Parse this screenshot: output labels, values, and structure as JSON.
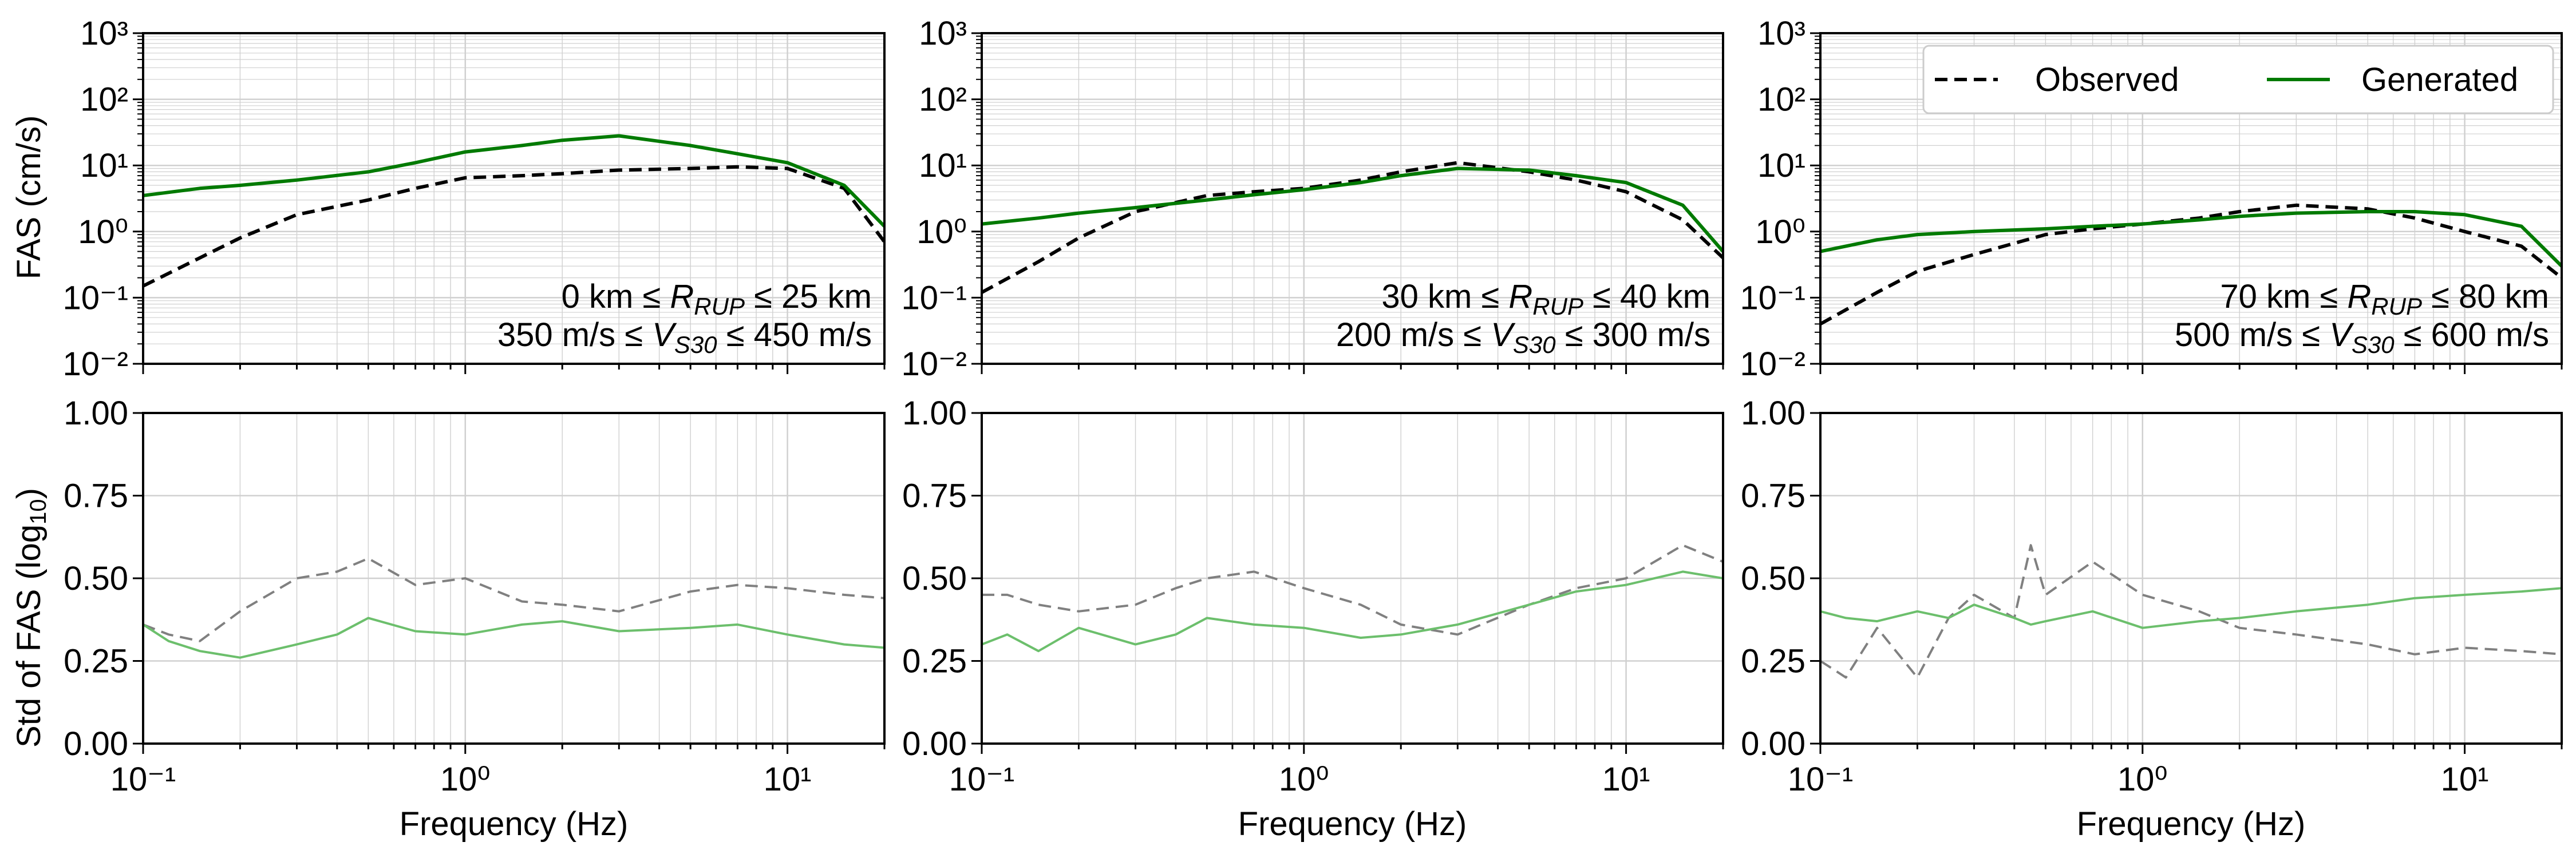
{
  "figure": {
    "legend": {
      "placement": "upper-right of top-right panel",
      "entries": [
        "Observed",
        "Generated"
      ]
    },
    "colors": {
      "observed_fas": "#000000",
      "generated_fas": "#007a00",
      "observed_std": "#808080",
      "generated_std": "#6cbf6c",
      "grid": "#d0d0d0",
      "axis": "#000000"
    },
    "ylabel_top": "FAS (cm/s)",
    "ylabel_bottom_prefix": "Std of FAS (log",
    "ylabel_bottom_sub": "10",
    "ylabel_bottom_suffix": ")",
    "xlabel": "Frequency (Hz)",
    "annotations": [
      {
        "line1_prefix": "0 km ≤ ",
        "line1_var": "R",
        "line1_sub": "RUP",
        "line1_suffix": " ≤ 25 km",
        "line2_prefix": "350 m/s ≤ ",
        "line2_var": "V",
        "line2_sub": "S30",
        "line2_suffix": " ≤ 450 m/s"
      },
      {
        "line1_prefix": "30 km ≤ ",
        "line1_var": "R",
        "line1_sub": "RUP",
        "line1_suffix": " ≤ 40 km",
        "line2_prefix": "200 m/s ≤ ",
        "line2_var": "V",
        "line2_sub": "S30",
        "line2_suffix": " ≤ 300 m/s"
      },
      {
        "line1_prefix": "70 km ≤ ",
        "line1_var": "R",
        "line1_sub": "RUP",
        "line1_suffix": " ≤ 80 km",
        "line2_prefix": "500 m/s ≤ ",
        "line2_var": "V",
        "line2_sub": "S30",
        "line2_suffix": " ≤ 600 m/s"
      }
    ]
  },
  "chart_data": [
    {
      "type": "line",
      "panel": "top-left",
      "xscale": "log",
      "yscale": "log",
      "xlim": [
        0.1,
        20
      ],
      "ylim": [
        0.01,
        1000
      ],
      "grid": true,
      "xticks": [
        "10⁻¹",
        "10⁰",
        "10¹"
      ],
      "yticks": [
        "10⁻²",
        "10⁻¹",
        "10⁰",
        "10¹",
        "10²",
        "10³"
      ],
      "ylabel": "FAS (cm/s)",
      "series": [
        {
          "name": "Observed",
          "style": "dashed",
          "x": [
            0.1,
            0.15,
            0.2,
            0.3,
            0.5,
            0.7,
            1.0,
            1.5,
            2.0,
            3.0,
            5.0,
            7.0,
            10,
            15,
            20
          ],
          "y": [
            0.15,
            0.4,
            0.8,
            1.8,
            3.0,
            4.5,
            6.5,
            7.0,
            7.5,
            8.5,
            9.0,
            9.5,
            9.0,
            4.5,
            0.7
          ]
        },
        {
          "name": "Generated",
          "style": "solid",
          "x": [
            0.1,
            0.15,
            0.2,
            0.3,
            0.5,
            0.7,
            1.0,
            1.5,
            2.0,
            3.0,
            5.0,
            7.0,
            10,
            15,
            20
          ],
          "y": [
            3.5,
            4.5,
            5.0,
            6.0,
            8.0,
            11.0,
            16.0,
            20.0,
            24.0,
            28.0,
            20.0,
            15.0,
            11.0,
            5.0,
            1.2
          ]
        }
      ]
    },
    {
      "type": "line",
      "panel": "top-middle",
      "xscale": "log",
      "yscale": "log",
      "xlim": [
        0.1,
        20
      ],
      "ylim": [
        0.01,
        1000
      ],
      "grid": true,
      "xticks": [
        "10⁻¹",
        "10⁰",
        "10¹"
      ],
      "yticks": [
        "10⁻²",
        "10⁻¹",
        "10⁰",
        "10¹",
        "10²",
        "10³"
      ],
      "series": [
        {
          "name": "Observed",
          "style": "dashed",
          "x": [
            0.1,
            0.15,
            0.2,
            0.3,
            0.5,
            0.7,
            1.0,
            1.5,
            2.0,
            3.0,
            5.0,
            7.0,
            10,
            15,
            20
          ],
          "y": [
            0.12,
            0.35,
            0.8,
            2.0,
            3.5,
            4.0,
            4.5,
            6.0,
            8.0,
            11.0,
            8.0,
            6.0,
            4.0,
            1.5,
            0.4
          ]
        },
        {
          "name": "Generated",
          "style": "solid",
          "x": [
            0.1,
            0.15,
            0.2,
            0.3,
            0.5,
            0.7,
            1.0,
            1.5,
            2.0,
            3.0,
            5.0,
            7.0,
            10,
            15,
            20
          ],
          "y": [
            1.3,
            1.6,
            1.9,
            2.3,
            3.0,
            3.6,
            4.3,
            5.5,
            7.0,
            9.0,
            8.5,
            7.0,
            5.5,
            2.5,
            0.5
          ]
        }
      ]
    },
    {
      "type": "line",
      "panel": "top-right",
      "xscale": "log",
      "yscale": "log",
      "xlim": [
        0.1,
        20
      ],
      "ylim": [
        0.01,
        1000
      ],
      "grid": true,
      "legend": "upper-right",
      "xticks": [
        "10⁻¹",
        "10⁰",
        "10¹"
      ],
      "yticks": [
        "10⁻²",
        "10⁻¹",
        "10⁰",
        "10¹",
        "10²",
        "10³"
      ],
      "series": [
        {
          "name": "Observed",
          "style": "dashed",
          "x": [
            0.1,
            0.15,
            0.2,
            0.3,
            0.5,
            0.7,
            1.0,
            1.5,
            2.0,
            3.0,
            5.0,
            7.0,
            10,
            15,
            20
          ],
          "y": [
            0.04,
            0.12,
            0.25,
            0.45,
            0.9,
            1.1,
            1.3,
            1.6,
            2.0,
            2.5,
            2.2,
            1.6,
            1.0,
            0.6,
            0.2
          ]
        },
        {
          "name": "Generated",
          "style": "solid",
          "x": [
            0.1,
            0.15,
            0.2,
            0.3,
            0.5,
            0.7,
            1.0,
            1.5,
            2.0,
            3.0,
            5.0,
            7.0,
            10,
            15,
            20
          ],
          "y": [
            0.5,
            0.75,
            0.9,
            1.0,
            1.1,
            1.2,
            1.3,
            1.5,
            1.7,
            1.9,
            2.0,
            2.0,
            1.8,
            1.2,
            0.3
          ]
        }
      ]
    },
    {
      "type": "line",
      "panel": "bottom-left",
      "xscale": "log",
      "yscale": "linear",
      "xlim": [
        0.1,
        20
      ],
      "ylim": [
        0,
        1
      ],
      "grid": true,
      "xticks": [
        "10⁻¹",
        "10⁰",
        "10¹"
      ],
      "yticks": [
        "0.00",
        "0.25",
        "0.50",
        "0.75",
        "1.00"
      ],
      "xlabel": "Frequency (Hz)",
      "series": [
        {
          "name": "Observed",
          "style": "dashed",
          "x": [
            0.1,
            0.12,
            0.15,
            0.2,
            0.3,
            0.4,
            0.5,
            0.7,
            1.0,
            1.5,
            2.0,
            3.0,
            5.0,
            7.0,
            10,
            15,
            20
          ],
          "y": [
            0.36,
            0.33,
            0.31,
            0.4,
            0.5,
            0.52,
            0.56,
            0.48,
            0.5,
            0.43,
            0.42,
            0.4,
            0.46,
            0.48,
            0.47,
            0.45,
            0.44
          ]
        },
        {
          "name": "Generated",
          "style": "solid",
          "x": [
            0.1,
            0.12,
            0.15,
            0.2,
            0.3,
            0.4,
            0.5,
            0.7,
            1.0,
            1.5,
            2.0,
            3.0,
            5.0,
            7.0,
            10,
            15,
            20
          ],
          "y": [
            0.36,
            0.31,
            0.28,
            0.26,
            0.3,
            0.33,
            0.38,
            0.34,
            0.33,
            0.36,
            0.37,
            0.34,
            0.35,
            0.36,
            0.33,
            0.3,
            0.29
          ]
        }
      ]
    },
    {
      "type": "line",
      "panel": "bottom-middle",
      "xscale": "log",
      "yscale": "linear",
      "xlim": [
        0.1,
        20
      ],
      "ylim": [
        0,
        1
      ],
      "grid": true,
      "xticks": [
        "10⁻¹",
        "10⁰",
        "10¹"
      ],
      "yticks": [
        "0.00",
        "0.25",
        "0.50",
        "0.75",
        "1.00"
      ],
      "xlabel": "Frequency (Hz)",
      "series": [
        {
          "name": "Observed",
          "style": "dashed",
          "x": [
            0.1,
            0.12,
            0.15,
            0.2,
            0.3,
            0.4,
            0.5,
            0.7,
            1.0,
            1.5,
            2.0,
            3.0,
            5.0,
            7.0,
            10,
            15,
            20
          ],
          "y": [
            0.45,
            0.45,
            0.42,
            0.4,
            0.42,
            0.47,
            0.5,
            0.52,
            0.47,
            0.42,
            0.36,
            0.33,
            0.42,
            0.47,
            0.5,
            0.6,
            0.55
          ]
        },
        {
          "name": "Generated",
          "style": "solid",
          "x": [
            0.1,
            0.12,
            0.15,
            0.2,
            0.3,
            0.4,
            0.5,
            0.7,
            1.0,
            1.5,
            2.0,
            3.0,
            5.0,
            7.0,
            10,
            15,
            20
          ],
          "y": [
            0.3,
            0.33,
            0.28,
            0.35,
            0.3,
            0.33,
            0.38,
            0.36,
            0.35,
            0.32,
            0.33,
            0.36,
            0.42,
            0.46,
            0.48,
            0.52,
            0.5
          ]
        }
      ]
    },
    {
      "type": "line",
      "panel": "bottom-right",
      "xscale": "log",
      "yscale": "linear",
      "xlim": [
        0.1,
        20
      ],
      "ylim": [
        0,
        1
      ],
      "grid": true,
      "xticks": [
        "10⁻¹",
        "10⁰",
        "10¹"
      ],
      "yticks": [
        "0.00",
        "0.25",
        "0.50",
        "0.75",
        "1.00"
      ],
      "xlabel": "Frequency (Hz)",
      "series": [
        {
          "name": "Observed",
          "style": "dashed",
          "x": [
            0.1,
            0.12,
            0.15,
            0.2,
            0.25,
            0.3,
            0.4,
            0.45,
            0.5,
            0.7,
            1.0,
            1.5,
            2.0,
            3.0,
            5.0,
            7.0,
            10,
            15,
            20
          ],
          "y": [
            0.25,
            0.2,
            0.35,
            0.2,
            0.38,
            0.45,
            0.38,
            0.6,
            0.45,
            0.55,
            0.45,
            0.4,
            0.35,
            0.33,
            0.3,
            0.27,
            0.29,
            0.28,
            0.27
          ]
        },
        {
          "name": "Generated",
          "style": "solid",
          "x": [
            0.1,
            0.12,
            0.15,
            0.2,
            0.25,
            0.3,
            0.4,
            0.45,
            0.5,
            0.7,
            1.0,
            1.5,
            2.0,
            3.0,
            5.0,
            7.0,
            10,
            15,
            20
          ],
          "y": [
            0.4,
            0.38,
            0.37,
            0.4,
            0.38,
            0.42,
            0.38,
            0.36,
            0.37,
            0.4,
            0.35,
            0.37,
            0.38,
            0.4,
            0.42,
            0.44,
            0.45,
            0.46,
            0.47
          ]
        }
      ]
    }
  ]
}
